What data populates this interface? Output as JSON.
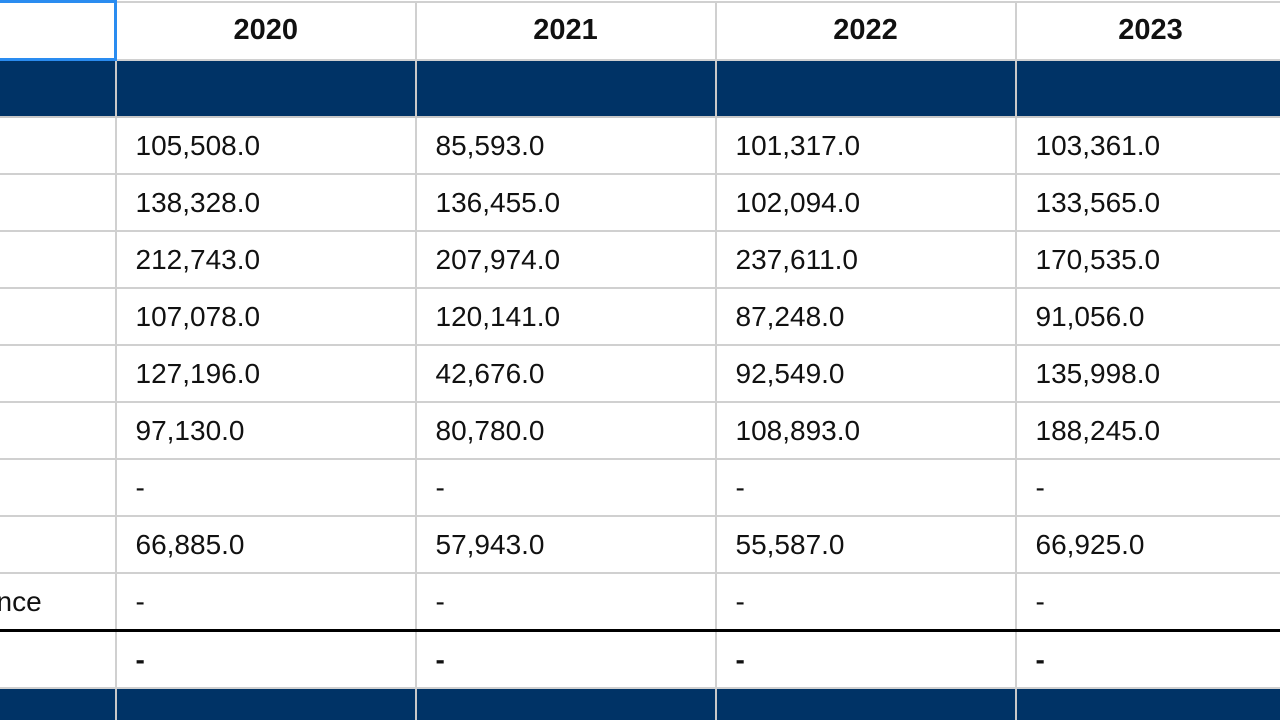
{
  "header": {
    "years": [
      "2020",
      "2021",
      "2022",
      "2023"
    ]
  },
  "rows": [
    {
      "label": "",
      "values": [
        "105,508.0",
        "85,593.0",
        "101,317.0",
        "103,361.0"
      ]
    },
    {
      "label": "",
      "values": [
        "138,328.0",
        "136,455.0",
        "102,094.0",
        "133,565.0"
      ]
    },
    {
      "label": "",
      "values": [
        "212,743.0",
        "207,974.0",
        "237,611.0",
        "170,535.0"
      ]
    },
    {
      "label": "",
      "values": [
        "107,078.0",
        "120,141.0",
        "87,248.0",
        "91,056.0"
      ]
    },
    {
      "label": "",
      "values": [
        "127,196.0",
        "42,676.0",
        "92,549.0",
        "135,998.0"
      ]
    },
    {
      "label": "",
      "values": [
        "97,130.0",
        "80,780.0",
        "108,893.0",
        "188,245.0"
      ]
    },
    {
      "label": "",
      "values": [
        "-",
        "-",
        "-",
        "-"
      ]
    },
    {
      "label": "",
      "values": [
        "66,885.0",
        "57,943.0",
        "55,587.0",
        "66,925.0"
      ]
    },
    {
      "label": "nce",
      "values": [
        "-",
        "-",
        "-",
        "-"
      ]
    }
  ],
  "total_row": {
    "label": "",
    "values": [
      "-",
      "-",
      "-",
      "-"
    ]
  },
  "colors": {
    "band": "#003366",
    "selection": "#2a8cf0",
    "gridline": "#d0d0d0"
  }
}
